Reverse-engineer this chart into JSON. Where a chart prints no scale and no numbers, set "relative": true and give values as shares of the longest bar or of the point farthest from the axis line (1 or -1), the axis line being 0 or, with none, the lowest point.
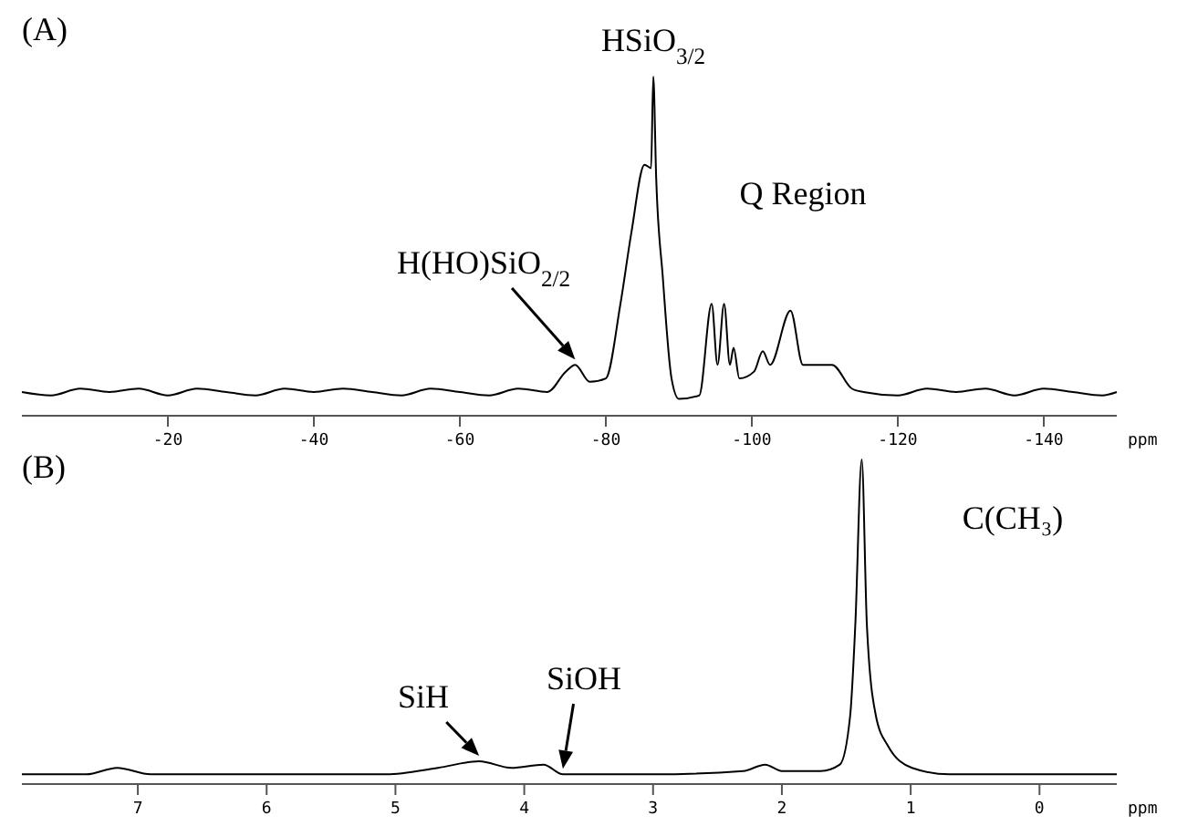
{
  "chart_data": [
    {
      "type": "line",
      "title": "(A)",
      "xlabel": "ppm",
      "relative": true,
      "color": "#000000",
      "x": [
        0,
        -4,
        -8,
        -12,
        -16,
        -20,
        -24,
        -28,
        -32,
        -36,
        -40,
        -44,
        -48,
        -52,
        -56,
        -60,
        -64,
        -68,
        -72,
        -74.5,
        -75.8,
        -77.8,
        -80,
        -82,
        -83.5,
        -85.3,
        -86.2,
        -86.5,
        -86.9,
        -87.8,
        -89,
        -90,
        -92.8,
        -94.5,
        -95.3,
        -96.2,
        -97,
        -97.5,
        -98.3,
        -100.3,
        -101.5,
        -102.5,
        -105.3,
        -107,
        -111,
        -113.7,
        -115.3,
        -120,
        -124,
        -128,
        -132,
        -136,
        -140,
        -144,
        -148,
        -150
      ],
      "values": [
        0.07,
        0.06,
        0.08,
        0.07,
        0.08,
        0.06,
        0.08,
        0.07,
        0.06,
        0.08,
        0.07,
        0.08,
        0.07,
        0.06,
        0.08,
        0.07,
        0.06,
        0.08,
        0.07,
        0.13,
        0.15,
        0.1,
        0.11,
        0.33,
        0.54,
        0.74,
        0.73,
        1,
        0.7,
        0.41,
        0.11,
        0.05,
        0.06,
        0.33,
        0.15,
        0.33,
        0.15,
        0.2,
        0.11,
        0.13,
        0.19,
        0.15,
        0.31,
        0.15,
        0.15,
        0.08,
        0.07,
        0.06,
        0.08,
        0.07,
        0.08,
        0.06,
        0.08,
        0.07,
        0.06,
        0.07
      ],
      "xlim": [
        0,
        -150
      ],
      "xticks": [
        -20,
        -40,
        -60,
        -80,
        -100,
        -120,
        -140
      ],
      "annotations": [
        {
          "text": "HSiO$_{3/2}$",
          "x": -86.5,
          "y": 1
        },
        "Q Region",
        {
          "text": "H(HO)SiO$_{2/2}$",
          "x": -75.8,
          "y": 0.15
        }
      ]
    },
    {
      "type": "line",
      "title": "(B)",
      "xlabel": "ppm",
      "relative": true,
      "color": "#000000",
      "x": [
        7.9,
        7.4,
        7.16,
        6.9,
        6,
        5.07,
        4.67,
        4.35,
        4.1,
        3.85,
        3.7,
        3,
        2.3,
        2.13,
        2,
        1.7,
        1.55,
        1.47,
        1.43,
        1.38,
        1.34,
        1.27,
        1.18,
        0.99,
        0.7,
        0,
        -0.6
      ],
      "values": [
        0.03,
        0.03,
        0.05,
        0.03,
        0.03,
        0.03,
        0.05,
        0.07,
        0.05,
        0.06,
        0.03,
        0.03,
        0.04,
        0.06,
        0.04,
        0.04,
        0.06,
        0.21,
        0.49,
        1,
        0.49,
        0.21,
        0.12,
        0.05,
        0.03,
        0.03,
        0.03
      ],
      "xlim": [
        7.9,
        -0.6
      ],
      "xticks": [
        7,
        6,
        5,
        4,
        3,
        2,
        1,
        0
      ],
      "annotations": [
        "C(CH₃)",
        {
          "text": "SiH",
          "x": 4.35,
          "y": 0.07
        },
        {
          "text": "SiOH",
          "x": 3.7,
          "y": 0.03
        }
      ]
    }
  ]
}
